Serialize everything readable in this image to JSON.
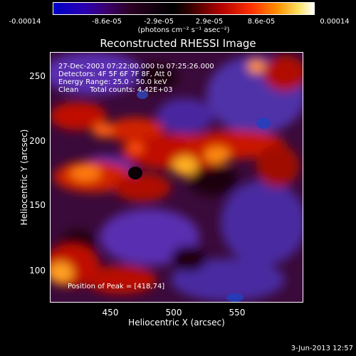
{
  "colorbar": {
    "ticks": [
      "-0.00014",
      "-8.6e-05",
      "-2.9e-05",
      "2.9e-05",
      "8.6e-05",
      "0.00014"
    ],
    "unit": "(photons cm⁻² s⁻¹ asec⁻²)"
  },
  "title": "Reconstructed RHESSI Image",
  "info": {
    "time": "27-Dec-2003 07:22:00.000 to 07:25:26.000",
    "detectors": "Detectors: 4F 5F 6F 7F 8F, Att 0",
    "energy": "Energy Range: 25.0 - 50.0 keV",
    "clean": "Clean     Total counts: 4.42E+03"
  },
  "peak": "Position of Peak = [418,74]",
  "axes": {
    "xlabel": "Heliocentric X (arcsec)",
    "ylabel": "Heliocentric Y (arcsec)",
    "xticks": [
      "450",
      "500",
      "550"
    ],
    "yticks": [
      "250",
      "200",
      "150",
      "100"
    ]
  },
  "footer_date": "3-Jun-2013 12:57",
  "palette": {
    "min": "#0000c8",
    "mid": "#000000",
    "max": "#ffffff"
  }
}
